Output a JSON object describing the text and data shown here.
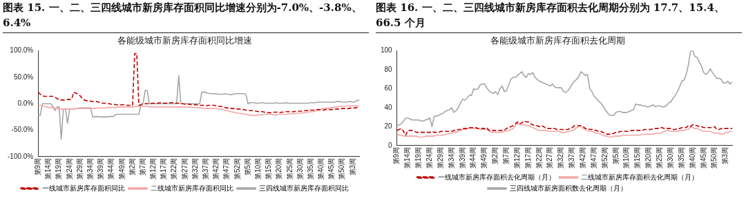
{
  "chart_data": [
    {
      "type": "line",
      "title": "图表 15. 一、二、三四线城市新房库存面积同比增速分别为-7.0%、-3.8%、6.4%",
      "subtitle": "各能级城市新房库存面积同比增速",
      "categories": [
        "第9周",
        null,
        null,
        null,
        null,
        "第14周",
        null,
        null,
        null,
        null,
        "第19周",
        null,
        null,
        null,
        null,
        "第24周",
        null,
        null,
        null,
        null,
        "第29周",
        null,
        null,
        null,
        null,
        "第34周",
        null,
        null,
        null,
        null,
        "第39周",
        null,
        null,
        null,
        null,
        "第44周",
        null,
        null,
        null,
        null,
        "第49周",
        null,
        null,
        null,
        null,
        "第2周",
        null,
        null,
        null,
        null,
        "第7周",
        null,
        null,
        null,
        null,
        "第12周",
        null,
        null,
        null,
        null,
        "第17周",
        null,
        null,
        null,
        null,
        "第22周",
        null,
        null,
        null,
        null,
        "第27周",
        null,
        null,
        null,
        null,
        "第32周",
        null,
        null,
        null,
        null,
        "第37周",
        null,
        null,
        null,
        null,
        "第42周",
        null,
        null,
        null,
        null,
        "第47周",
        null,
        null,
        null,
        null,
        "第52周",
        null,
        null,
        null,
        null,
        "第5周",
        null,
        null,
        null,
        null,
        "第10周",
        null,
        null,
        null,
        null,
        "第15周",
        null,
        null,
        null,
        null,
        "第20周",
        null,
        null,
        null,
        null,
        "第25周",
        null,
        null,
        null,
        null,
        "第30周",
        null,
        null,
        null,
        null,
        "第35周",
        null,
        null,
        null,
        null,
        "第40周",
        null,
        null,
        null,
        null,
        "第45周",
        null,
        null,
        null,
        null,
        "第50周",
        null,
        null,
        null,
        null,
        "第3周",
        null,
        null,
        null
      ],
      "series": [
        {
          "name": "一线城市新房库存面积同比",
          "color": "#c00000",
          "line_style": "dashed",
          "values": [
            22,
            18,
            15,
            14,
            14,
            14,
            14,
            14,
            12,
            10,
            7,
            7,
            7,
            7,
            8,
            8,
            9,
            22,
            20,
            18,
            15,
            10,
            7,
            6,
            5,
            5,
            4,
            4,
            4,
            3,
            1,
            1,
            1,
            0,
            0,
            -1,
            -1,
            -2,
            -2,
            -2,
            -2,
            -2,
            -3,
            -3,
            -3,
            -3,
            95,
            95,
            -3,
            -2,
            -1,
            0,
            0,
            0,
            1,
            1,
            1,
            1,
            2,
            2,
            1,
            1,
            2,
            2,
            2,
            1,
            1,
            1,
            0,
            0,
            -1,
            -1,
            -1,
            -2,
            -2,
            -2,
            -2,
            -3,
            -3,
            -3,
            -4,
            -3,
            -3,
            -3,
            -3,
            -4,
            -5,
            -5,
            -6,
            -7,
            -8,
            -8,
            -9,
            -9,
            -10,
            -10,
            -10,
            -11,
            -11,
            -12,
            -12,
            -13,
            -13,
            -14,
            -14,
            -15,
            -15,
            -15,
            -16,
            -16,
            -17,
            -17,
            -16,
            -16,
            -16,
            -17,
            -16,
            -16,
            -15,
            -15,
            -15,
            -15,
            -15,
            -14,
            -14,
            -14,
            -14,
            -13,
            -13,
            -13,
            -12,
            -12,
            -12,
            -11,
            -11,
            -12,
            -12,
            -11,
            -11,
            -11,
            -11,
            -11,
            -10,
            -10,
            -10,
            -9,
            -9,
            -9,
            -9,
            -8,
            -8,
            -8,
            -7,
            -7
          ]
        },
        {
          "name": "二线城市新房库存面积同比",
          "color": "#f4a6a6",
          "line_style": "solid",
          "values": [
            -3,
            -3,
            -4,
            -5,
            -6,
            -7,
            -7,
            -8,
            -8,
            -9,
            -10,
            -10,
            -10,
            -10,
            -10,
            -10,
            -10,
            -10,
            -9,
            -9,
            -9,
            -9,
            -9,
            -9,
            -9,
            -9,
            -9,
            -9,
            -8,
            -8,
            -8,
            -8,
            -8,
            -7,
            -7,
            -7,
            -7,
            -7,
            -6,
            -6,
            -6,
            -6,
            -6,
            -6,
            -6,
            -6,
            -6,
            -5,
            -5,
            -5,
            -5,
            -5,
            -5,
            -6,
            -6,
            -6,
            -6,
            -6,
            -6,
            -6,
            -6,
            -6,
            -6,
            -6,
            -6,
            -6,
            -6,
            -6,
            -6,
            -6,
            -6,
            -6,
            -6,
            -7,
            -7,
            -7,
            -7,
            -8,
            -8,
            -9,
            -9,
            -9,
            -9,
            -9,
            -9,
            -9,
            -10,
            -10,
            -11,
            -12,
            -13,
            -14,
            -15,
            -16,
            -17,
            -18,
            -18,
            -19,
            -19,
            -20,
            -21,
            -21,
            -22,
            -22,
            -22,
            -21,
            -21,
            -21,
            -20,
            -20,
            -20,
            -20,
            -21,
            -21,
            -21,
            -20,
            -20,
            -20,
            -20,
            -20,
            -19,
            -19,
            -19,
            -18,
            -18,
            -18,
            -17,
            -17,
            -16,
            -16,
            -15,
            -15,
            -14,
            -13,
            -12,
            -10,
            -9,
            -9,
            -8,
            -8,
            -7,
            -7,
            -6,
            -6,
            -5,
            -5,
            -5,
            -4,
            -4,
            -4,
            -4,
            -4,
            -4,
            -4
          ]
        },
        {
          "name": "三四线城市新房库存面积同比",
          "color": "#a6a6a6",
          "line_style": "solid",
          "values": [
            -22,
            -22,
            0,
            0,
            0,
            0,
            0,
            -5,
            -13,
            -6,
            -6,
            -67,
            -10,
            -10,
            -37,
            -10,
            -10,
            -10,
            -9,
            -9,
            -8,
            -8,
            -8,
            -8,
            -8,
            -8,
            -25,
            -25,
            -24,
            -25,
            -25,
            -25,
            -25,
            -25,
            -24,
            -24,
            -24,
            -20,
            -20,
            -20,
            -20,
            -20,
            -20,
            -20,
            -20,
            -20,
            -20,
            -20,
            -20,
            0,
            0,
            25,
            25,
            0,
            0,
            0,
            0,
            0,
            0,
            0,
            0,
            0,
            0,
            0,
            0,
            0,
            0,
            53,
            0,
            0,
            0,
            0,
            0,
            0,
            0,
            0,
            0,
            0,
            22,
            22,
            21,
            20,
            19,
            19,
            19,
            19,
            18,
            18,
            18,
            19,
            18,
            18,
            17,
            18,
            19,
            19,
            19,
            19,
            19,
            18,
            0,
            2,
            2,
            2,
            1,
            1,
            2,
            2,
            1,
            1,
            1,
            1,
            1,
            2,
            1,
            1,
            1,
            1,
            2,
            1,
            1,
            1,
            1,
            1,
            1,
            1,
            1,
            1,
            1,
            1,
            2,
            2,
            2,
            3,
            3,
            3,
            3,
            3,
            3,
            3,
            3,
            3,
            4,
            4,
            4,
            3,
            3,
            3,
            4,
            4,
            3,
            4,
            6,
            7
          ]
        }
      ],
      "ylim": [
        -100,
        100
      ],
      "yticks": [
        {
          "value": -100,
          "label": "-100.0%"
        },
        {
          "value": -50,
          "label": "-50.0%"
        },
        {
          "value": 0,
          "label": "0.0%"
        },
        {
          "value": 50,
          "label": "50.0%"
        },
        {
          "value": 100,
          "label": "100.0%"
        }
      ],
      "grid": false,
      "legend": "bottom",
      "marker": "none"
    },
    {
      "type": "line",
      "title": "图表 16. 一、二、三四线城市新房库存面积去化周期分别为 17.7、15.4、66.5 个月",
      "subtitle": "各能级城市新房库存面积去化周期",
      "categories": [
        "第9周",
        null,
        null,
        null,
        null,
        "第14周",
        null,
        null,
        null,
        null,
        "第19周",
        null,
        null,
        null,
        null,
        "第24周",
        null,
        null,
        null,
        null,
        "第29周",
        null,
        null,
        null,
        null,
        "第34周",
        null,
        null,
        null,
        null,
        "第39周",
        null,
        null,
        null,
        null,
        "第44周",
        null,
        null,
        null,
        null,
        "第49周",
        null,
        null,
        null,
        null,
        "第2周",
        null,
        null,
        null,
        null,
        "第7周",
        null,
        null,
        null,
        null,
        "第12周",
        null,
        null,
        null,
        null,
        "第17周",
        null,
        null,
        null,
        null,
        "第22周",
        null,
        null,
        null,
        null,
        "第27周",
        null,
        null,
        null,
        null,
        "第32周",
        null,
        null,
        null,
        null,
        "第37周",
        null,
        null,
        null,
        null,
        "第42周",
        null,
        null,
        null,
        null,
        "第47周",
        null,
        null,
        null,
        null,
        "第52周",
        null,
        null,
        null,
        null,
        "第5周",
        null,
        null,
        null,
        null,
        "第10周",
        null,
        null,
        null,
        null,
        "第15周",
        null,
        null,
        null,
        null,
        "第20周",
        null,
        null,
        null,
        null,
        "第25周",
        null,
        null,
        null,
        null,
        "第30周",
        null,
        null,
        null,
        null,
        "第35周",
        null,
        null,
        null,
        null,
        "第40周",
        null,
        null,
        null,
        null,
        "第45周",
        null,
        null,
        null,
        null,
        "第50周",
        null,
        null,
        null,
        null,
        "第3周",
        null,
        null,
        null
      ],
      "series": [
        {
          "name": "一线城市新房库存面积去化周期（月）",
          "color": "#c00000",
          "line_style": "dashed",
          "values": [
            16,
            17,
            18,
            15,
            11,
            16,
            16,
            16,
            15,
            14,
            14,
            14,
            14,
            14,
            14,
            14,
            15,
            14,
            14,
            14,
            15,
            15,
            15,
            15,
            15,
            15,
            16,
            16,
            17,
            17,
            18,
            18,
            18,
            19,
            19,
            19,
            19,
            18,
            18,
            18,
            18,
            19,
            16,
            16,
            16,
            16,
            16,
            16,
            16,
            16,
            18,
            19,
            20,
            21,
            23,
            25,
            23,
            24,
            26,
            25,
            25,
            23,
            22,
            21,
            21,
            20,
            21,
            20,
            18,
            18,
            18,
            18,
            18,
            17,
            17,
            17,
            17,
            17,
            17,
            18,
            19,
            21,
            21,
            21,
            21,
            20,
            18,
            18,
            17,
            17,
            16,
            16,
            15,
            15,
            14,
            13,
            12,
            12,
            12,
            13,
            14,
            14,
            15,
            15,
            15,
            15,
            15,
            16,
            16,
            16,
            16,
            16,
            16,
            17,
            17,
            17,
            17,
            18,
            18,
            18,
            19,
            19,
            18,
            18,
            18,
            18,
            17,
            17,
            18,
            18,
            19,
            19,
            19,
            21,
            20,
            22,
            21,
            21,
            20,
            20,
            19,
            19,
            19,
            19,
            19,
            20,
            17,
            17,
            18,
            18,
            18,
            18,
            18,
            18
          ]
        },
        {
          "name": "二线城市新房库存面积去化周期（月）",
          "color": "#f4a6a6",
          "line_style": "solid",
          "values": [
            12,
            11,
            11,
            10,
            10,
            10,
            10,
            10,
            10,
            10,
            9,
            9,
            9,
            10,
            10,
            10,
            10,
            10,
            11,
            11,
            11,
            11,
            12,
            12,
            13,
            13,
            14,
            14,
            15,
            16,
            17,
            17,
            18,
            18,
            18,
            18,
            18,
            18,
            17,
            17,
            17,
            17,
            16,
            14,
            14,
            14,
            14,
            14,
            14,
            15,
            15,
            16,
            17,
            18,
            21,
            24,
            22,
            22,
            22,
            21,
            21,
            20,
            19,
            18,
            17,
            16,
            16,
            16,
            16,
            15,
            15,
            15,
            15,
            15,
            15,
            14,
            14,
            14,
            15,
            15,
            16,
            17,
            19,
            20,
            20,
            18,
            17,
            16,
            15,
            15,
            14,
            13,
            13,
            12,
            11,
            10,
            10,
            9,
            9,
            10,
            10,
            10,
            10,
            11,
            11,
            11,
            11,
            11,
            11,
            11,
            11,
            11,
            12,
            12,
            12,
            12,
            12,
            12,
            13,
            13,
            13,
            14,
            15,
            16,
            16,
            15,
            15,
            15,
            15,
            16,
            16,
            16,
            17,
            17,
            20,
            19,
            18,
            18,
            17,
            16,
            15,
            15,
            15,
            15,
            14,
            13,
            13,
            13,
            12,
            12,
            14,
            14,
            15,
            15
          ]
        },
        {
          "name": "三四线城市新房面积数去化周期（月）",
          "color": "#a6a6a6",
          "line_style": "solid",
          "values": [
            21,
            22,
            23,
            26,
            29,
            29,
            28,
            27,
            27,
            27,
            27,
            26,
            26,
            27,
            28,
            29,
            20,
            31,
            31,
            32,
            33,
            34,
            36,
            37,
            38,
            40,
            35,
            37,
            40,
            45,
            49,
            48,
            50,
            53,
            53,
            60,
            59,
            60,
            64,
            65,
            65,
            61,
            58,
            56,
            55,
            57,
            54,
            60,
            63,
            57,
            58,
            64,
            70,
            72,
            72,
            74,
            76,
            78,
            74,
            72,
            76,
            75,
            77,
            72,
            70,
            68,
            67,
            66,
            65,
            64,
            63,
            65,
            62,
            61,
            61,
            61,
            57,
            56,
            58,
            61,
            65,
            68,
            70,
            73,
            78,
            76,
            74,
            75,
            60,
            57,
            52,
            50,
            47,
            45,
            42,
            38,
            35,
            32,
            32,
            32,
            35,
            36,
            36,
            35,
            35,
            35,
            36,
            37,
            38,
            44,
            43,
            43,
            42,
            42,
            41,
            41,
            42,
            43,
            41,
            42,
            42,
            41,
            41,
            42,
            45,
            46,
            50,
            53,
            57,
            62,
            68,
            69,
            75,
            85,
            100,
            100,
            94,
            93,
            88,
            84,
            77,
            75,
            77,
            81,
            77,
            74,
            71,
            71,
            70,
            66,
            66,
            68,
            65,
            67
          ]
        }
      ],
      "ylim": [
        0,
        100
      ],
      "yticks": [
        0,
        20,
        40,
        60,
        80,
        100
      ],
      "grid": false,
      "legend": "bottom",
      "marker": "none"
    }
  ]
}
